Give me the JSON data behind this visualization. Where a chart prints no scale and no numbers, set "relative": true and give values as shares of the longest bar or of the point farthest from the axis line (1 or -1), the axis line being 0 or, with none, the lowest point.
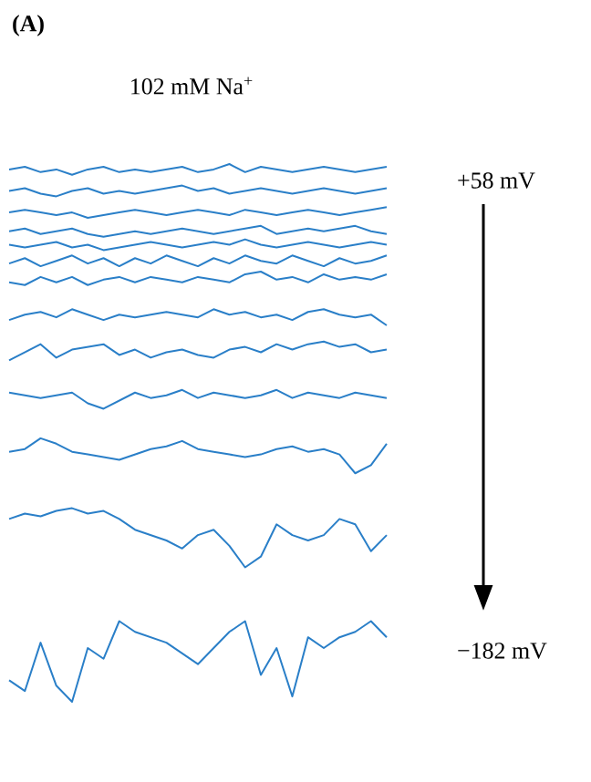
{
  "chart_data": {
    "type": "line",
    "relative": true,
    "title": "102 mM Na$^{+}$",
    "annotations": [
      "**(A)**",
      "+58 mV",
      "−182 mV"
    ],
    "categories": [
      null,
      null,
      null,
      null,
      null,
      null,
      null,
      null,
      null,
      null,
      null,
      null,
      null,
      null,
      null,
      null,
      null,
      null,
      null,
      null,
      null,
      null,
      null,
      null,
      null
    ],
    "series": [
      {
        "color": "#2a7fc8",
        "values": [
          0.99,
          0.995,
          0.985,
          0.99,
          0.98,
          0.99,
          0.995,
          0.985,
          0.99,
          0.985,
          0.99,
          0.995,
          0.985,
          0.99,
          1.0,
          0.985,
          0.995,
          0.99,
          0.985,
          0.99,
          0.995,
          0.99,
          0.985,
          0.99,
          0.995
        ]
      },
      {
        "color": "#2a7fc8",
        "values": [
          0.95,
          0.955,
          0.945,
          0.94,
          0.95,
          0.955,
          0.945,
          0.95,
          0.945,
          0.95,
          0.955,
          0.96,
          0.95,
          0.955,
          0.945,
          0.95,
          0.955,
          0.95,
          0.945,
          0.95,
          0.955,
          0.95,
          0.945,
          0.95,
          0.955
        ]
      },
      {
        "color": "#2a7fc8",
        "values": [
          0.91,
          0.915,
          0.91,
          0.905,
          0.91,
          0.9,
          0.905,
          0.91,
          0.915,
          0.91,
          0.905,
          0.91,
          0.915,
          0.91,
          0.905,
          0.915,
          0.91,
          0.905,
          0.91,
          0.915,
          0.91,
          0.905,
          0.91,
          0.915,
          0.92
        ]
      },
      {
        "color": "#2a7fc8",
        "values": [
          0.875,
          0.88,
          0.87,
          0.875,
          0.88,
          0.87,
          0.865,
          0.87,
          0.875,
          0.87,
          0.875,
          0.88,
          0.875,
          0.87,
          0.875,
          0.88,
          0.885,
          0.87,
          0.875,
          0.88,
          0.875,
          0.88,
          0.885,
          0.875,
          0.87
        ]
      },
      {
        "color": "#2a7fc8",
        "values": [
          0.85,
          0.845,
          0.85,
          0.855,
          0.845,
          0.85,
          0.84,
          0.845,
          0.85,
          0.855,
          0.85,
          0.845,
          0.85,
          0.855,
          0.85,
          0.86,
          0.85,
          0.845,
          0.85,
          0.855,
          0.85,
          0.845,
          0.85,
          0.855,
          0.85
        ]
      },
      {
        "color": "#2a7fc8",
        "values": [
          0.815,
          0.825,
          0.81,
          0.82,
          0.83,
          0.815,
          0.825,
          0.81,
          0.825,
          0.815,
          0.83,
          0.82,
          0.81,
          0.825,
          0.815,
          0.83,
          0.82,
          0.815,
          0.83,
          0.82,
          0.81,
          0.825,
          0.815,
          0.82,
          0.83
        ]
      },
      {
        "color": "#2a7fc8",
        "values": [
          0.78,
          0.775,
          0.79,
          0.78,
          0.79,
          0.775,
          0.785,
          0.79,
          0.78,
          0.79,
          0.785,
          0.78,
          0.79,
          0.785,
          0.78,
          0.795,
          0.8,
          0.785,
          0.79,
          0.78,
          0.795,
          0.785,
          0.79,
          0.785,
          0.795
        ]
      },
      {
        "color": "#2a7fc8",
        "values": [
          0.71,
          0.72,
          0.725,
          0.715,
          0.73,
          0.72,
          0.71,
          0.72,
          0.715,
          0.72,
          0.725,
          0.72,
          0.715,
          0.73,
          0.72,
          0.725,
          0.715,
          0.72,
          0.71,
          0.725,
          0.73,
          0.72,
          0.715,
          0.72,
          0.7
        ]
      },
      {
        "color": "#2a7fc8",
        "values": [
          0.635,
          0.65,
          0.665,
          0.64,
          0.655,
          0.66,
          0.665,
          0.645,
          0.655,
          0.64,
          0.65,
          0.655,
          0.645,
          0.64,
          0.655,
          0.66,
          0.65,
          0.665,
          0.655,
          0.665,
          0.67,
          0.66,
          0.665,
          0.65,
          0.655
        ]
      },
      {
        "color": "#2a7fc8",
        "values": [
          0.575,
          0.57,
          0.565,
          0.57,
          0.575,
          0.555,
          0.545,
          0.56,
          0.575,
          0.565,
          0.57,
          0.58,
          0.565,
          0.575,
          0.57,
          0.565,
          0.57,
          0.58,
          0.565,
          0.575,
          0.57,
          0.565,
          0.575,
          0.57,
          0.565
        ]
      },
      {
        "color": "#2a7fc8",
        "values": [
          0.465,
          0.47,
          0.49,
          0.48,
          0.465,
          0.46,
          0.455,
          0.45,
          0.46,
          0.47,
          0.475,
          0.485,
          0.47,
          0.465,
          0.46,
          0.455,
          0.46,
          0.47,
          0.475,
          0.465,
          0.47,
          0.46,
          0.425,
          0.44,
          0.48
        ]
      },
      {
        "color": "#2a7fc8",
        "values": [
          0.34,
          0.35,
          0.345,
          0.355,
          0.36,
          0.35,
          0.355,
          0.34,
          0.32,
          0.31,
          0.3,
          0.285,
          0.31,
          0.32,
          0.29,
          0.25,
          0.27,
          0.33,
          0.31,
          0.3,
          0.31,
          0.34,
          0.33,
          0.28,
          0.31
        ]
      },
      {
        "color": "#2a7fc8",
        "values": [
          0.04,
          0.02,
          0.11,
          0.03,
          0.0,
          0.1,
          0.08,
          0.15,
          0.13,
          0.12,
          0.11,
          0.09,
          0.07,
          0.1,
          0.13,
          0.15,
          0.05,
          0.1,
          0.01,
          0.12,
          0.1,
          0.12,
          0.13,
          0.15,
          0.12
        ]
      }
    ]
  }
}
